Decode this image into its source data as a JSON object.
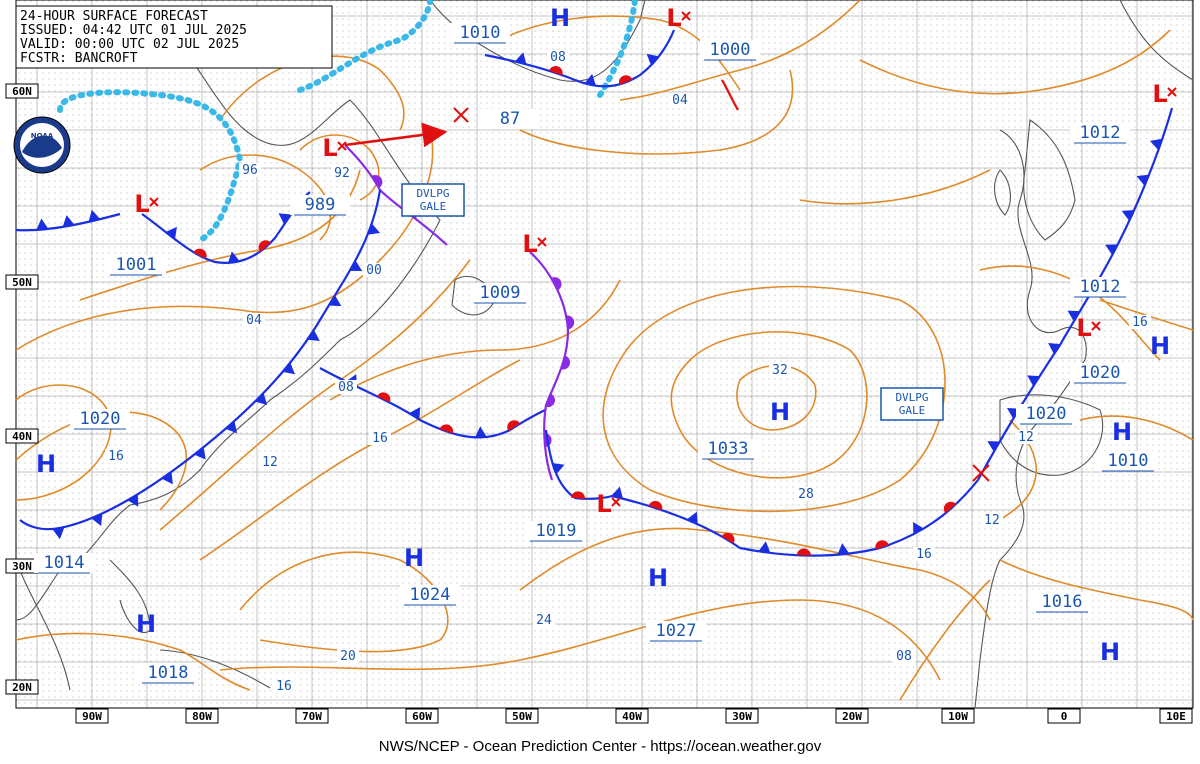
{
  "header": {
    "title": "24-HOUR SURFACE FORECAST",
    "issued": "ISSUED: 04:42 UTC 01 JUL 2025",
    "valid": "VALID:  00:00 UTC 02 JUL 2025",
    "forecaster": "FCSTR:  BANCROFT"
  },
  "logo": {
    "text": "NOAA"
  },
  "footer": "NWS/NCEP - Ocean Prediction Center - https://ocean.weather.gov",
  "lat_labels": [
    "60N",
    "50N",
    "40N",
    "30N",
    "20N"
  ],
  "lon_labels": [
    "90W",
    "80W",
    "70W",
    "60W",
    "50W",
    "40W",
    "30W",
    "20W",
    "10W",
    "0",
    "10E"
  ],
  "pressure_labels": [
    "1010",
    "1000",
    "87",
    "989",
    "1001",
    "1009",
    "1033",
    "1020",
    "1020",
    "1014",
    "1024",
    "1027",
    "1018",
    "1012",
    "1012",
    "1020",
    "1010",
    "1016",
    "1019"
  ],
  "isobar_labels": [
    "08",
    "04",
    "96",
    "92",
    "00",
    "04",
    "08",
    "16",
    "12",
    "16",
    "32",
    "28",
    "24",
    "20",
    "16",
    "16",
    "12",
    "16",
    "12",
    "08"
  ],
  "highs": [
    "H",
    "H",
    "H",
    "H",
    "H",
    "H",
    "H",
    "H",
    "H"
  ],
  "lows": [
    "L",
    "L",
    "L",
    "L",
    "L",
    "L",
    "L"
  ],
  "warnings": [
    {
      "line1": "DVLPG",
      "line2": "GALE"
    },
    {
      "line1": "DVLPG",
      "line2": "GALE"
    }
  ],
  "colors": {
    "isobar": "#e08a2a",
    "land": "#555555",
    "grid": "#9a9a9a",
    "ice_edge": "#3ab8e8",
    "warm_front": "#e01010",
    "cold_front": "#1a2fe0",
    "occluded_front": "#8a2be2",
    "label": "#1a56b0"
  },
  "icons": {
    "logo": "noaa-logo",
    "low_center": "low-x-icon",
    "storm_track": "arrow-icon"
  }
}
